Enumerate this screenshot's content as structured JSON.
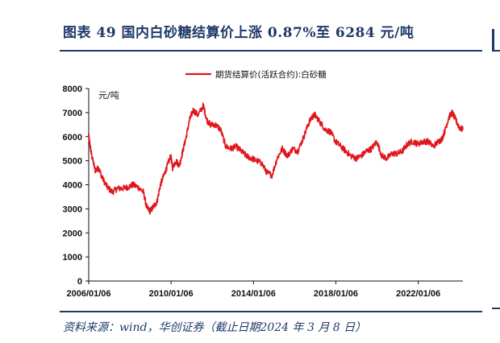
{
  "title": "图表 49 国内白砂糖结算价上涨 0.87%至 6284 元/吨",
  "source": "资料来源：wind，华创证券（截止日期2024 年 3 月 8 日）",
  "chart_data": {
    "type": "line",
    "unit_label": "元/吨",
    "ylim": [
      0,
      8000
    ],
    "yticks": [
      "0",
      "1000",
      "2000",
      "3000",
      "4000",
      "5000",
      "6000",
      "7000",
      "8000"
    ],
    "xticks": [
      "2006/01/06",
      "2010/01/06",
      "2014/01/06",
      "2018/01/06",
      "2022/01/06"
    ],
    "xlim": [
      "2006/01/06",
      "2024/03/08"
    ],
    "legend": "top-center",
    "grid": false,
    "series": [
      {
        "name": "期货结算价(活跃合约):白砂糖",
        "color": "#e0161d",
        "x": [
          "2006-01",
          "2006-02",
          "2006-03",
          "2006-05",
          "2006-07",
          "2006-09",
          "2006-12",
          "2007-03",
          "2007-06",
          "2007-09",
          "2007-12",
          "2008-03",
          "2008-06",
          "2008-09",
          "2008-11",
          "2009-01",
          "2009-03",
          "2009-05",
          "2009-07",
          "2009-09",
          "2009-11",
          "2010-01",
          "2010-02",
          "2010-04",
          "2010-06",
          "2010-08",
          "2010-10",
          "2010-12",
          "2011-02",
          "2011-05",
          "2011-08",
          "2011-10",
          "2011-12",
          "2012-03",
          "2012-06",
          "2012-09",
          "2012-12",
          "2013-03",
          "2013-06",
          "2013-09",
          "2013-12",
          "2014-03",
          "2014-06",
          "2014-09",
          "2014-12",
          "2015-03",
          "2015-06",
          "2015-09",
          "2015-12",
          "2016-03",
          "2016-06",
          "2016-09",
          "2016-11",
          "2017-01",
          "2017-04",
          "2017-07",
          "2017-10",
          "2018-01",
          "2018-04",
          "2018-07",
          "2018-10",
          "2019-01",
          "2019-04",
          "2019-07",
          "2019-10",
          "2020-01",
          "2020-04",
          "2020-07",
          "2020-10",
          "2021-01",
          "2021-04",
          "2021-07",
          "2021-10",
          "2022-01",
          "2022-04",
          "2022-07",
          "2022-10",
          "2023-01",
          "2023-03",
          "2023-05",
          "2023-07",
          "2023-09",
          "2023-11",
          "2024-01",
          "2024-03-08"
        ],
        "values": [
          6100,
          5600,
          5200,
          4600,
          4700,
          4300,
          3900,
          3700,
          3850,
          3850,
          3900,
          4000,
          3900,
          3700,
          3050,
          2900,
          3100,
          3300,
          4000,
          4400,
          4800,
          5200,
          4700,
          5000,
          4800,
          5400,
          6000,
          6700,
          7100,
          6900,
          7300,
          6700,
          6500,
          6500,
          6300,
          5600,
          5500,
          5600,
          5400,
          5200,
          5100,
          5000,
          4900,
          4500,
          4400,
          5100,
          5500,
          5200,
          5500,
          5400,
          5900,
          6500,
          6800,
          6900,
          6600,
          6300,
          6200,
          5800,
          5600,
          5400,
          5200,
          5100,
          5200,
          5400,
          5500,
          5800,
          5200,
          5100,
          5300,
          5300,
          5400,
          5700,
          5800,
          5700,
          5800,
          5800,
          5600,
          5800,
          5900,
          6300,
          6800,
          7000,
          6700,
          6400,
          6284
        ]
      }
    ]
  }
}
